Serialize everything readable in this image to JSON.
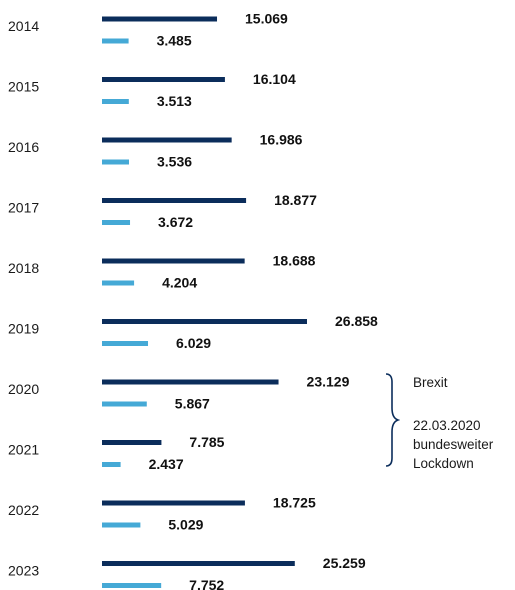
{
  "chart_data": {
    "type": "bar",
    "orientation": "horizontal",
    "title": "",
    "xlabel": "",
    "ylabel": "",
    "categories": [
      "2014",
      "2015",
      "2016",
      "2017",
      "2018",
      "2019",
      "2020",
      "2021",
      "2022",
      "2023"
    ],
    "series": [
      {
        "values": [
          15069,
          16104,
          16986,
          18877,
          18688,
          26858,
          23129,
          7785,
          18725,
          25259
        ],
        "labels": [
          "15.069",
          "16.104",
          "16.986",
          "18.877",
          "18.688",
          "26.858",
          "23.129",
          "7.785",
          "18.725",
          "25.259"
        ],
        "color": "#0b2d5b"
      },
      {
        "values": [
          3485,
          3513,
          3536,
          3672,
          4204,
          6029,
          5867,
          2437,
          5029,
          7752
        ],
        "labels": [
          "3.485",
          "3.513",
          "3.536",
          "3.672",
          "4.204",
          "6.029",
          "5.867",
          "2.437",
          "5.029",
          "7.752"
        ],
        "color": "#45a9d6"
      }
    ],
    "grid": false,
    "legend": "none",
    "annotations": [
      {
        "text": "Brexit",
        "target": "2020"
      },
      {
        "text": "22.03.2020 bundesweiter Lockdown",
        "target": "2021"
      }
    ]
  },
  "annotation_text": {
    "brexit": "Brexit",
    "lockdown_line1": "22.03.2020",
    "lockdown_line2": "bundesweiter",
    "lockdown_line3": "Lockdown"
  }
}
